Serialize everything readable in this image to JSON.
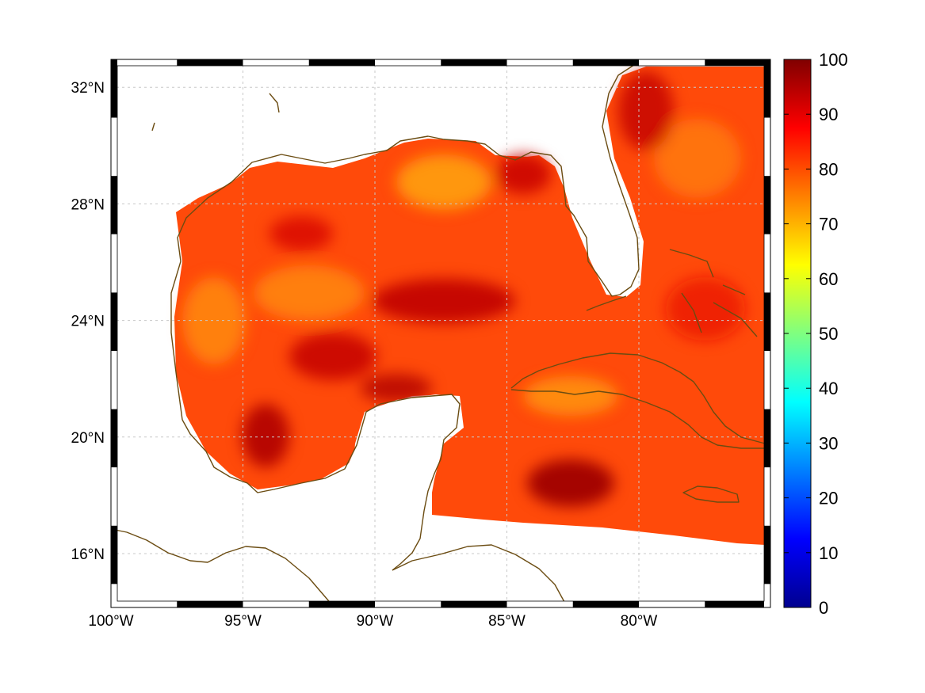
{
  "map": {
    "lon_ticks": [
      {
        "value": -100,
        "label": "100°W"
      },
      {
        "value": -95,
        "label": "95°W"
      },
      {
        "value": -90,
        "label": "90°W"
      },
      {
        "value": -85,
        "label": "85°W"
      },
      {
        "value": -80,
        "label": "80°W"
      }
    ],
    "lat_ticks": [
      {
        "value": 16,
        "label": "16°N"
      },
      {
        "value": 20,
        "label": "20°N"
      },
      {
        "value": 24,
        "label": "24°N"
      },
      {
        "value": 28,
        "label": "28°N"
      },
      {
        "value": 32,
        "label": "32°N"
      }
    ],
    "lon_range": [
      -100,
      -75
    ],
    "lat_range": [
      14.5,
      33
    ],
    "grid": true,
    "coastline_color": "#6b4c12",
    "frame_style": "alternating black-white border"
  },
  "colorbar": {
    "range": [
      0,
      100
    ],
    "ticks": [
      {
        "value": 0,
        "label": "0"
      },
      {
        "value": 10,
        "label": "10"
      },
      {
        "value": 20,
        "label": "20"
      },
      {
        "value": 30,
        "label": "30"
      },
      {
        "value": 40,
        "label": "40"
      },
      {
        "value": 50,
        "label": "50"
      },
      {
        "value": 60,
        "label": "60"
      },
      {
        "value": 70,
        "label": "70"
      },
      {
        "value": 80,
        "label": "80"
      },
      {
        "value": 90,
        "label": "90"
      },
      {
        "value": 100,
        "label": "100"
      }
    ],
    "colormap": "jet",
    "colors": [
      "#00008f",
      "#0000ff",
      "#00ffff",
      "#ffff00",
      "#ff0000",
      "#800000"
    ]
  },
  "field": {
    "typical_value": "80",
    "min_visible": "70",
    "max_visible": "100"
  }
}
